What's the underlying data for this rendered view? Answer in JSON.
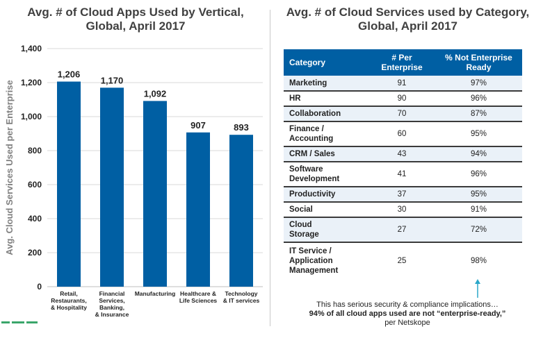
{
  "left_title": [
    "Avg. # of Cloud Apps Used by Vertical,",
    "Global, April 2017"
  ],
  "right_title": [
    "Avg. # of Cloud Services used by Category,",
    "Global, April 2017"
  ],
  "chart_data": {
    "type": "bar",
    "title": "Avg. # of Cloud Apps Used by Vertical, Global, April 2017",
    "ylabel": "Avg. Cloud Services Used per Enterprise",
    "ylim": [
      0,
      1400
    ],
    "yticks": [
      "0",
      "200",
      "400",
      "600",
      "800",
      "1,000",
      "1,200",
      "1,400"
    ],
    "ytick_values": [
      0,
      200,
      400,
      600,
      800,
      1000,
      1200,
      1400
    ],
    "grid": true,
    "bar_color": "#005fa3",
    "categories": [
      [
        "Retail,",
        "Restaurants,",
        "& Hospitality"
      ],
      [
        "Financial",
        "Services,",
        "Banking,",
        "& Insurance"
      ],
      [
        "Manufacturing"
      ],
      [
        "Healthcare &",
        "Life Sciences"
      ],
      [
        "Technology",
        "& IT services"
      ]
    ],
    "values": [
      1206,
      1170,
      1092,
      907,
      893
    ],
    "value_labels": [
      "1,206",
      "1,170",
      "1,092",
      "907",
      "893"
    ]
  },
  "table": {
    "headers": [
      [
        "Category"
      ],
      [
        "# Per",
        "Enterprise"
      ],
      [
        "% Not Enterprise",
        "Ready"
      ]
    ],
    "header_color": "#005fa3",
    "rows": [
      {
        "category": [
          "Marketing"
        ],
        "per": "91",
        "pct": "97%"
      },
      {
        "category": [
          "HR"
        ],
        "per": "90",
        "pct": "96%"
      },
      {
        "category": [
          "Collaboration"
        ],
        "per": "70",
        "pct": "87%"
      },
      {
        "category": [
          "Finance /",
          "Accounting"
        ],
        "per": "60",
        "pct": "95%"
      },
      {
        "category": [
          "CRM / Sales"
        ],
        "per": "43",
        "pct": "94%"
      },
      {
        "category": [
          "Software",
          "Development"
        ],
        "per": "41",
        "pct": "96%"
      },
      {
        "category": [
          "Productivity"
        ],
        "per": "37",
        "pct": "95%"
      },
      {
        "category": [
          "Social"
        ],
        "per": "30",
        "pct": "91%"
      },
      {
        "category": [
          "Cloud",
          "Storage"
        ],
        "per": "27",
        "pct": "72%"
      },
      {
        "category": [
          "IT Service /",
          "Application",
          "Management"
        ],
        "per": "25",
        "pct": "98%"
      }
    ]
  },
  "note": {
    "line1": "This has serious security & compliance implications…",
    "line2": "94% of all cloud apps used are not “enterprise-ready,”",
    "line3": "per Netskope"
  },
  "arrow_color": "#2aa7c9"
}
